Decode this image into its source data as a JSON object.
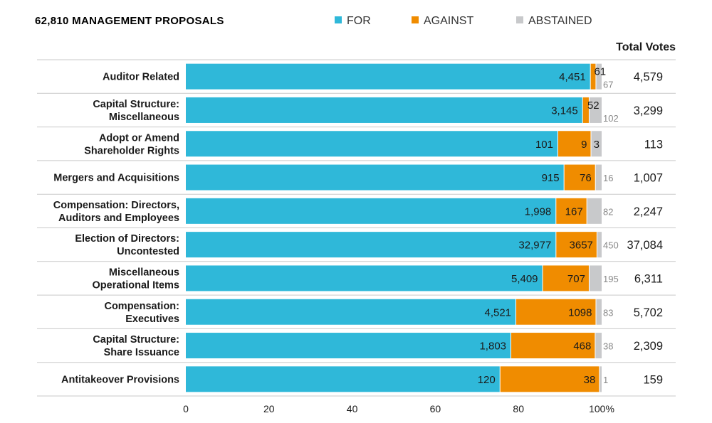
{
  "chart_data": {
    "type": "bar",
    "orientation": "horizontal",
    "stacked": true,
    "normalized_percent": true,
    "title": "62,810 MANAGEMENT PROPOSALS",
    "total_header": "Total Votes",
    "legend_position": "top",
    "series": [
      {
        "name": "FOR",
        "color": "#2fb8d9"
      },
      {
        "name": "AGAINST",
        "color": "#f08c00"
      },
      {
        "name": "ABSTAINED",
        "color": "#c8c9cb"
      }
    ],
    "categories": [
      {
        "lines": [
          "Auditor Related"
        ],
        "for": 4451,
        "against": 61,
        "abstained": 67,
        "total": "4,579",
        "labels": {
          "for": "4,451",
          "against": "61",
          "abstained": "67"
        }
      },
      {
        "lines": [
          "Capital Structure:",
          "Miscellaneous"
        ],
        "for": 3145,
        "against": 52,
        "abstained": 102,
        "total": "3,299",
        "labels": {
          "for": "3,145",
          "against": "52",
          "abstained": "102"
        }
      },
      {
        "lines": [
          "Adopt or Amend",
          "Shareholder Rights"
        ],
        "for": 101,
        "against": 9,
        "abstained": 3,
        "total": "113",
        "labels": {
          "for": "101",
          "against": "9",
          "abstained": "3"
        }
      },
      {
        "lines": [
          "Mergers and Acquisitions"
        ],
        "for": 915,
        "against": 76,
        "abstained": 16,
        "total": "1,007",
        "labels": {
          "for": "915",
          "against": "76",
          "abstained": "16"
        }
      },
      {
        "lines": [
          "Compensation: Directors,",
          "Auditors and Employees"
        ],
        "for": 1998,
        "against": 167,
        "abstained": 82,
        "total": "2,247",
        "labels": {
          "for": "1,998",
          "against": "167",
          "abstained": "82"
        }
      },
      {
        "lines": [
          "Election of Directors:",
          "Uncontested"
        ],
        "for": 32977,
        "against": 3657,
        "abstained": 450,
        "total": "37,084",
        "labels": {
          "for": "32,977",
          "against": "3657",
          "abstained": "450"
        }
      },
      {
        "lines": [
          "Miscellaneous",
          "Operational Items"
        ],
        "for": 5409,
        "against": 707,
        "abstained": 195,
        "total": "6,311",
        "labels": {
          "for": "5,409",
          "against": "707",
          "abstained": "195"
        }
      },
      {
        "lines": [
          "Compensation:",
          "Executives"
        ],
        "for": 4521,
        "against": 1098,
        "abstained": 83,
        "total": "5,702",
        "labels": {
          "for": "4,521",
          "against": "1098",
          "abstained": "83"
        }
      },
      {
        "lines": [
          "Capital Structure:",
          "Share Issuance"
        ],
        "for": 1803,
        "against": 468,
        "abstained": 38,
        "total": "2,309",
        "labels": {
          "for": "1,803",
          "against": "468",
          "abstained": "38"
        }
      },
      {
        "lines": [
          "Antitakeover Provisions"
        ],
        "for": 120,
        "against": 38,
        "abstained": 1,
        "total": "159",
        "labels": {
          "for": "120",
          "against": "38",
          "abstained": "1"
        }
      }
    ],
    "xlim": [
      0,
      100
    ],
    "xticks": [
      0,
      20,
      40,
      60,
      80,
      100
    ],
    "xtick_labels": [
      "0",
      "20",
      "40",
      "60",
      "80",
      "100%"
    ],
    "grid": false
  }
}
